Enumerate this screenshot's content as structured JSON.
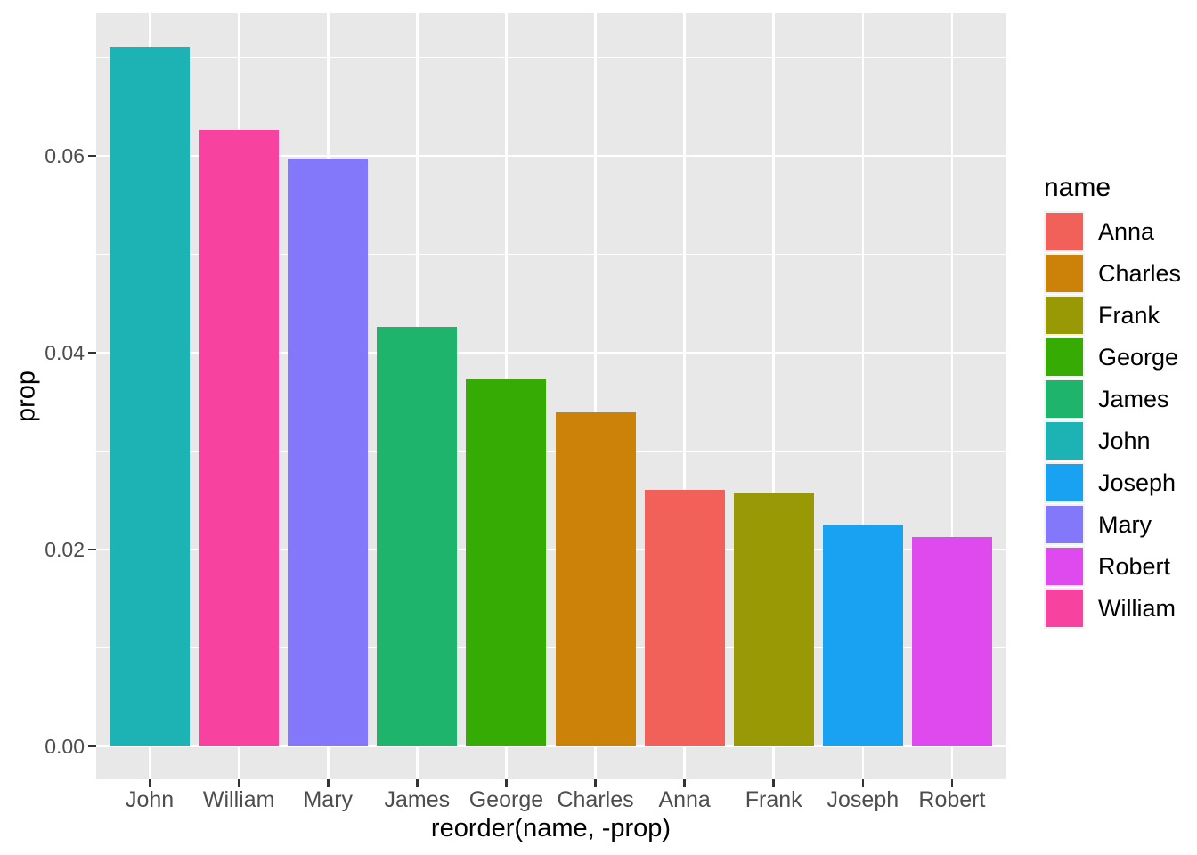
{
  "figure": {
    "background": "#FFFFFF",
    "panel_background": "#E8E8E8",
    "gridline_color": "#FFFFFF",
    "tick_mark_color": "#333333",
    "tick_label_color": "#4D4D4D",
    "title_color": "#000000",
    "legend_key_background": "#F2F2F2"
  },
  "chart_data": {
    "type": "bar",
    "title": "",
    "xlabel": "reorder(name, -prop)",
    "ylabel": "prop",
    "categories": [
      "John",
      "William",
      "Mary",
      "James",
      "George",
      "Charles",
      "Anna",
      "Frank",
      "Joseph",
      "Robert"
    ],
    "values": [
      0.071,
      0.0626,
      0.0597,
      0.0426,
      0.0373,
      0.0339,
      0.0261,
      0.0258,
      0.0224,
      0.0213
    ],
    "bar_colors": [
      "#1DB2B4",
      "#F8429F",
      "#8478FA",
      "#1FB46C",
      "#36AB04",
      "#CC8108",
      "#F2605A",
      "#999906",
      "#1AA2F2",
      "#DF4AEF"
    ],
    "ylim": [
      -0.0034,
      0.0745
    ],
    "grid": true,
    "y_major_ticks": [
      {
        "label": "0.00",
        "value": 0.0
      },
      {
        "label": "0.02",
        "value": 0.02
      },
      {
        "label": "0.04",
        "value": 0.04
      },
      {
        "label": "0.06",
        "value": 0.06
      }
    ],
    "y_minor_ticks": [
      0.01,
      0.03,
      0.05,
      0.07
    ],
    "legend": {
      "title": "name",
      "position": "right",
      "entries": [
        {
          "label": "Anna",
          "color": "#F2605A"
        },
        {
          "label": "Charles",
          "color": "#CC8108"
        },
        {
          "label": "Frank",
          "color": "#999906"
        },
        {
          "label": "George",
          "color": "#36AB04"
        },
        {
          "label": "James",
          "color": "#1FB46C"
        },
        {
          "label": "John",
          "color": "#1DB2B4"
        },
        {
          "label": "Joseph",
          "color": "#1AA2F2"
        },
        {
          "label": "Mary",
          "color": "#8478FA"
        },
        {
          "label": "Robert",
          "color": "#DF4AEF"
        },
        {
          "label": "William",
          "color": "#F8429F"
        }
      ]
    }
  }
}
